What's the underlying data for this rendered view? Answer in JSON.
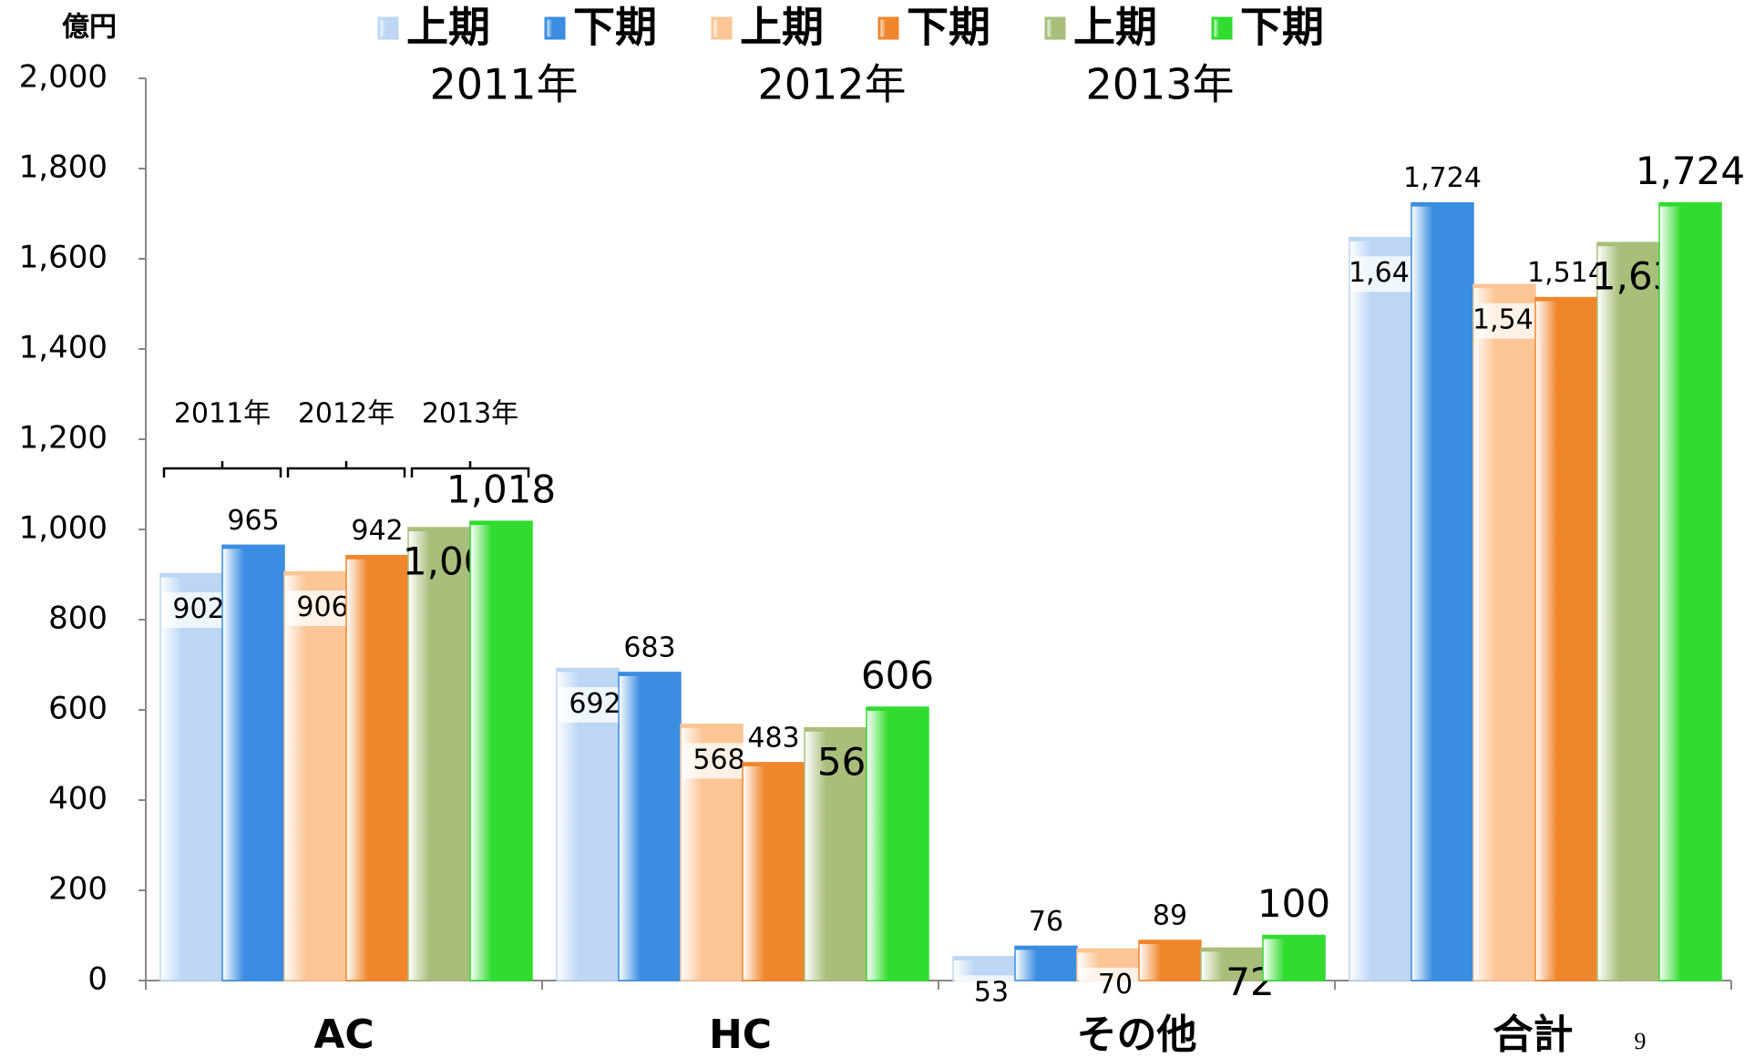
{
  "chart_data": {
    "type": "bar",
    "unit_label": "億円",
    "categories": [
      "AC",
      "HC",
      "その他",
      "合計"
    ],
    "legend_groups": [
      "2011年",
      "2012年",
      "2013年"
    ],
    "annotations": [
      "2011年",
      "2012年",
      "2013年"
    ],
    "page_number": "9",
    "series": [
      {
        "name": "上期",
        "color": "#bcd6f4",
        "values": [
          902,
          692,
          53,
          1647
        ],
        "value_labels": [
          "902",
          "692",
          "53",
          "1,647"
        ]
      },
      {
        "name": "下期",
        "color": "#3a8de0",
        "values": [
          965,
          683,
          76,
          1724
        ],
        "value_labels": [
          "965",
          "683",
          "76",
          "1,724"
        ]
      },
      {
        "name": "上期",
        "color": "#fcc596",
        "values": [
          906,
          568,
          70,
          1543
        ],
        "value_labels": [
          "906",
          "568",
          "70",
          "1,543"
        ]
      },
      {
        "name": "下期",
        "color": "#f0862c",
        "values": [
          942,
          483,
          89,
          1514
        ],
        "value_labels": [
          "942",
          "483",
          "89",
          "1,514"
        ]
      },
      {
        "name": "上期",
        "color": "#a9be7a",
        "values": [
          1004,
          560,
          72,
          1636
        ],
        "value_labels": [
          "1,004",
          "560",
          "72",
          "1,636"
        ],
        "label_color": "#1a6fc0"
      },
      {
        "name": "下期",
        "color": "#2fdc2f",
        "values": [
          1018,
          606,
          100,
          1724
        ],
        "value_labels": [
          "1,018",
          "606",
          "100",
          "1,724"
        ],
        "label_color": "#ff0000"
      }
    ],
    "ylim": [
      0,
      2000
    ],
    "yticks": [
      0,
      200,
      400,
      600,
      800,
      {
        "value": 1000,
        "label": "1,000"
      },
      {
        "value": 1200,
        "label": "1,200"
      },
      {
        "value": 1400,
        "label": "1,400"
      },
      {
        "value": 1600,
        "label": "1,600"
      },
      {
        "value": 1800,
        "label": "1,800"
      },
      {
        "value": 2000,
        "label": "2,000"
      }
    ],
    "grid": false
  }
}
